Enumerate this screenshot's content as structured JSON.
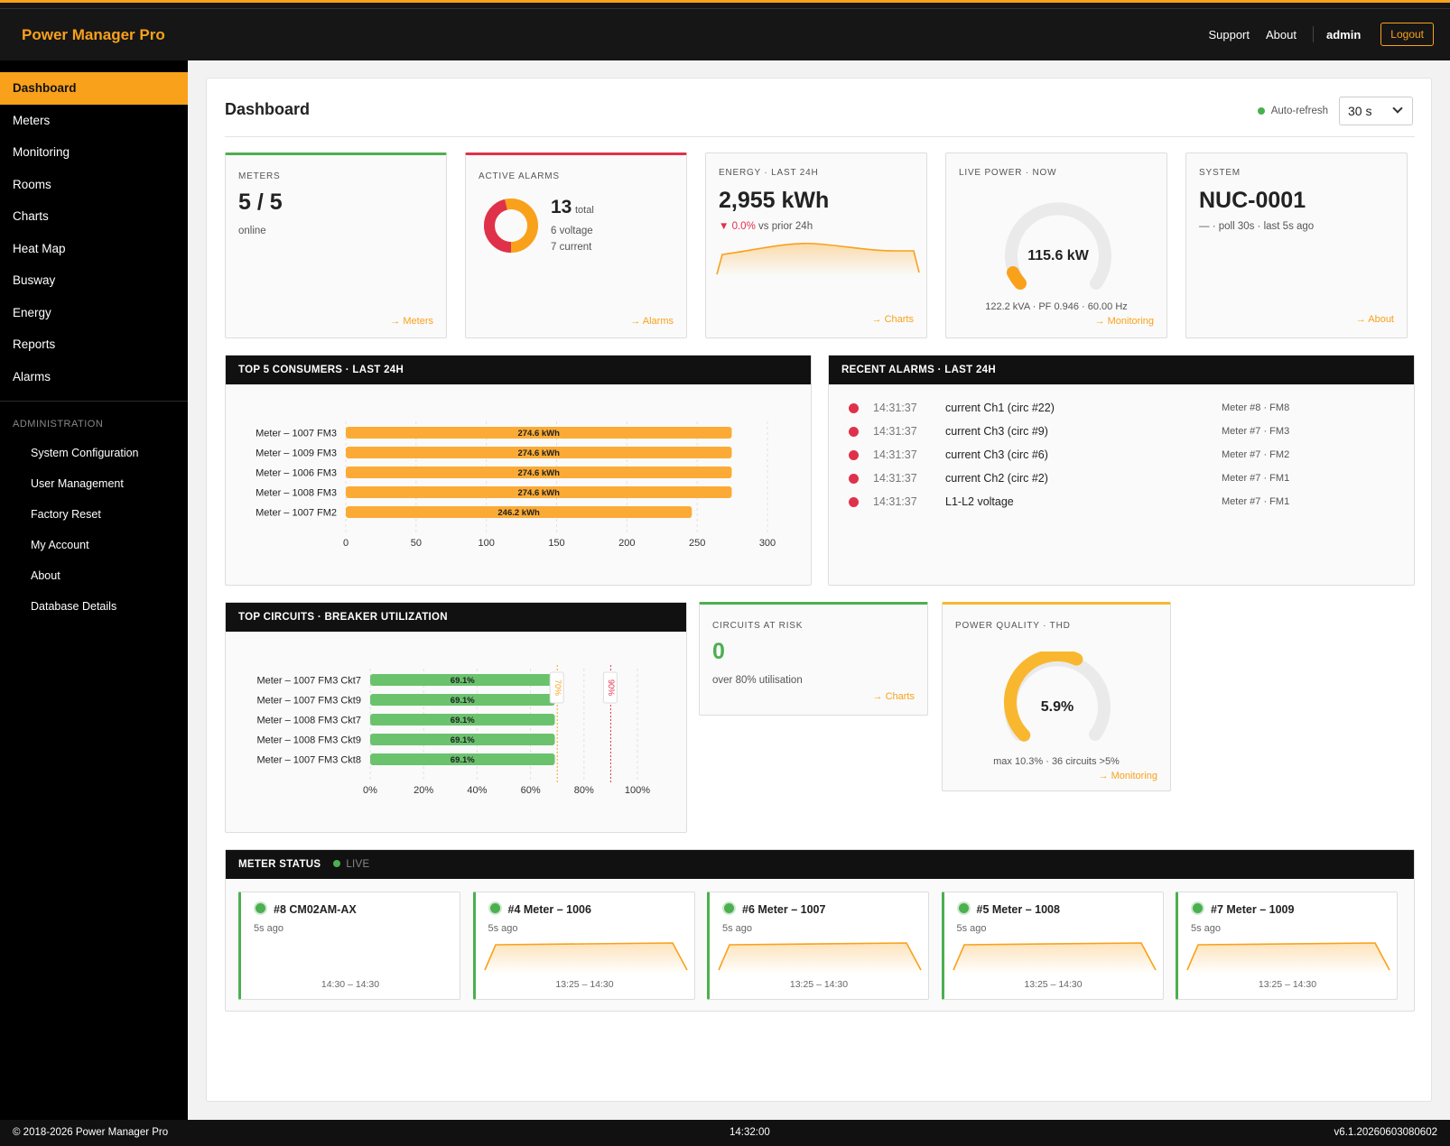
{
  "app": {
    "brand": "Power Manager Pro"
  },
  "topnav": {
    "support": "Support",
    "about": "About",
    "user": "admin",
    "logout": "Logout"
  },
  "sidebar": {
    "items": [
      "Dashboard",
      "Meters",
      "Monitoring",
      "Rooms",
      "Charts",
      "Heat Map",
      "Busway",
      "Energy",
      "Reports",
      "Alarms"
    ],
    "section": "ADMINISTRATION",
    "admin_items": [
      "System Configuration",
      "User Management",
      "Factory Reset",
      "My Account",
      "About",
      "Database Details"
    ]
  },
  "page": {
    "title": "Dashboard",
    "auto_refresh_label": "Auto-refresh",
    "auto_refresh_value": "30 s"
  },
  "cards": {
    "meters": {
      "title": "METERS",
      "value": "5 / 5",
      "sub": "online",
      "link": "→ Meters"
    },
    "alarms": {
      "title": "ACTIVE ALARMS",
      "total_num": "13",
      "total_lbl": "total",
      "voltage": "6 voltage",
      "current": "7 current",
      "link": "→ Alarms",
      "voltage_count": 6,
      "current_count": 7
    },
    "energy": {
      "title": "ENERGY · LAST 24H",
      "value": "2,955 kWh",
      "delta": "0.0%",
      "delta_suffix": "vs prior 24h",
      "link": "→ Charts"
    },
    "live": {
      "title": "LIVE POWER · NOW",
      "value": "115.6 kW",
      "sub": "122.2 kVA · PF 0.946 · 60.00 Hz",
      "link": "→ Monitoring"
    },
    "system": {
      "title": "SYSTEM",
      "value": "NUC-0001",
      "sub": "— · poll 30s · last 5s ago",
      "link": "→ About"
    }
  },
  "consumers": {
    "title": "TOP 5 CONSUMERS · LAST 24H",
    "chart_data": {
      "type": "bar",
      "orientation": "horizontal",
      "categories": [
        "Meter – 1007 FM3",
        "Meter – 1009 FM3",
        "Meter – 1006 FM3",
        "Meter – 1008 FM3",
        "Meter – 1007 FM2"
      ],
      "values": [
        274.6,
        274.6,
        274.6,
        274.6,
        246.2
      ],
      "labels": [
        "274.6 kWh",
        "274.6 kWh",
        "274.6 kWh",
        "274.6 kWh",
        "246.2 kWh"
      ],
      "xlim": [
        0,
        300
      ],
      "ticks": [
        "0",
        "50",
        "100",
        "150",
        "200",
        "250",
        "300"
      ],
      "color": "#fbab35"
    }
  },
  "recent_alarms": {
    "title": "RECENT ALARMS · LAST 24H",
    "rows": [
      {
        "time": "14:31:37",
        "msg": "current Ch1 (circ #22)",
        "src": "Meter #8 · FM8"
      },
      {
        "time": "14:31:37",
        "msg": "current Ch3 (circ #9)",
        "src": "Meter #7 · FM3"
      },
      {
        "time": "14:31:37",
        "msg": "current Ch3 (circ #6)",
        "src": "Meter #7 · FM2"
      },
      {
        "time": "14:31:37",
        "msg": "current Ch2 (circ #2)",
        "src": "Meter #7 · FM1"
      },
      {
        "time": "14:31:37",
        "msg": "L1-L2 voltage",
        "src": "Meter #7 · FM1"
      }
    ]
  },
  "circuits": {
    "title": "TOP CIRCUITS · BREAKER UTILIZATION",
    "chart_data": {
      "type": "bar",
      "orientation": "horizontal",
      "categories": [
        "Meter – 1007 FM3 Ckt7",
        "Meter – 1007 FM3 Ckt9",
        "Meter – 1008 FM3 Ckt7",
        "Meter – 1008 FM3 Ckt9",
        "Meter – 1007 FM3 Ckt8"
      ],
      "values": [
        69.1,
        69.1,
        69.1,
        69.1,
        69.1
      ],
      "labels": [
        "69.1%",
        "69.1%",
        "69.1%",
        "69.1%",
        "69.1%"
      ],
      "xlim": [
        0,
        100
      ],
      "ticks": [
        "0%",
        "20%",
        "40%",
        "60%",
        "80%",
        "100%"
      ],
      "thresholds": [
        {
          "value": 70,
          "label": "70%",
          "color": "#f9a11b"
        },
        {
          "value": 90,
          "label": "90%",
          "color": "#e0314b"
        }
      ],
      "color": "#6ac26d"
    }
  },
  "risk": {
    "title": "CIRCUITS AT RISK",
    "value": "0",
    "sub": "over 80% utilisation",
    "link": "→ Charts"
  },
  "quality": {
    "title": "POWER QUALITY · THD",
    "value": "5.9%",
    "sub": "max 10.3% · 36 circuits >5%",
    "link": "→ Monitoring",
    "fraction": 0.59
  },
  "meter_status": {
    "title": "METER STATUS",
    "live": "LIVE",
    "meters": [
      {
        "name": "#8 CM02AM-AX",
        "ago": "5s ago",
        "range": "14:30 – 14:30",
        "spark": false
      },
      {
        "name": "#4 Meter – 1006",
        "ago": "5s ago",
        "range": "13:25 – 14:30",
        "spark": true
      },
      {
        "name": "#6 Meter – 1007",
        "ago": "5s ago",
        "range": "13:25 – 14:30",
        "spark": true
      },
      {
        "name": "#5 Meter – 1008",
        "ago": "5s ago",
        "range": "13:25 – 14:30",
        "spark": true
      },
      {
        "name": "#7 Meter – 1009",
        "ago": "5s ago",
        "range": "13:25 – 14:30",
        "spark": true
      }
    ]
  },
  "footer": {
    "copyright": "© 2018-2026 Power Manager Pro",
    "clock": "14:32:00",
    "version": "v6.1.20260603080602"
  }
}
